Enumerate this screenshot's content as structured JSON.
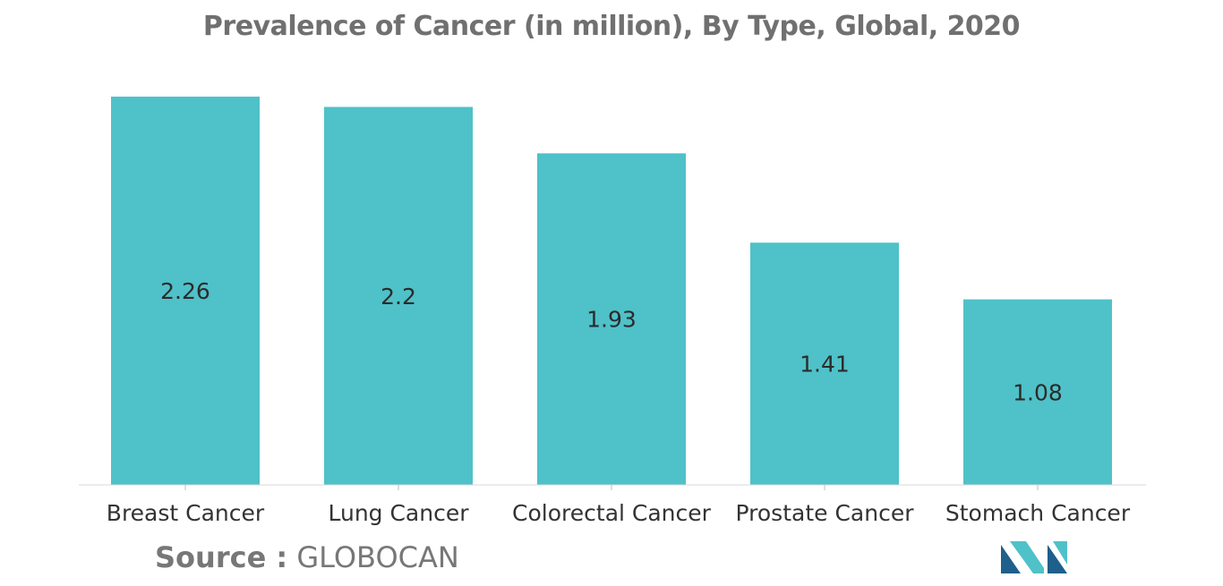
{
  "chart_data": {
    "type": "bar",
    "title": "Prevalence of Cancer (in million), By Type, Global, 2020",
    "categories": [
      "Breast Cancer",
      "Lung Cancer",
      "Colorectal Cancer",
      "Prostate Cancer",
      "Stomach Cancer"
    ],
    "values": [
      2.26,
      2.2,
      1.93,
      1.41,
      1.08
    ],
    "data_labels": [
      "2.26",
      "2.2",
      "1.93",
      "1.41",
      "1.08"
    ],
    "xlabel": "",
    "ylabel": "",
    "ylim": [
      0,
      2.26
    ],
    "grid": false,
    "legend": "none",
    "bar_color": "#4FC1C9"
  },
  "source": {
    "label": "Source :",
    "value": "GLOBOCAN"
  },
  "colors": {
    "title": "#707070",
    "data_label": "#2b2b2b",
    "axis_label": "#333333",
    "logo_dark": "#1f5f8b",
    "logo_light": "#4FC1C9"
  },
  "logo": {
    "icon": "mordor-intelligence-logo-icon"
  }
}
